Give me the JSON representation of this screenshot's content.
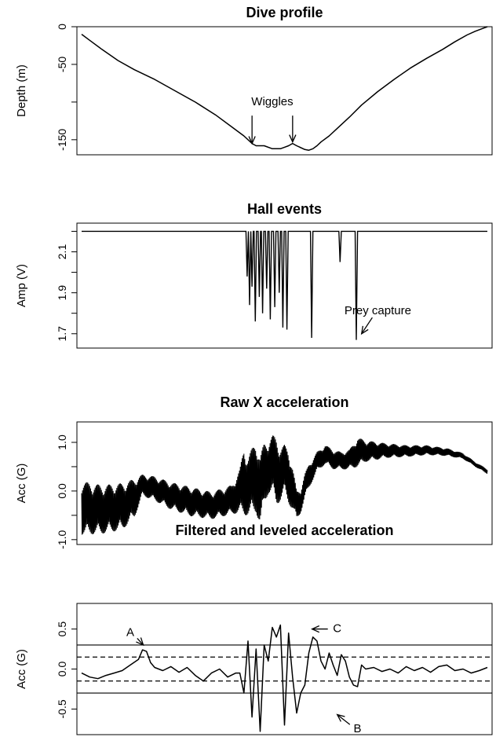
{
  "chart_data": [
    {
      "type": "line",
      "title": "Dive profile",
      "ylabel": "Depth (m)",
      "xlabel": "",
      "ylim": [
        -170,
        0
      ],
      "yticks": [
        {
          "v": 0,
          "label": "0"
        },
        {
          "v": -50,
          "label": "-50"
        },
        {
          "v": -100,
          "label": ""
        },
        {
          "v": -150,
          "label": "-150"
        }
      ],
      "x": [
        0,
        0.02,
        0.05,
        0.09,
        0.13,
        0.18,
        0.23,
        0.28,
        0.33,
        0.37,
        0.4,
        0.42,
        0.43,
        0.45,
        0.47,
        0.49,
        0.5,
        0.51,
        0.52,
        0.53,
        0.55,
        0.56,
        0.57,
        0.58,
        0.59,
        0.61,
        0.63,
        0.66,
        0.69,
        0.73,
        0.77,
        0.81,
        0.85,
        0.89,
        0.92,
        0.95,
        0.97,
        0.99,
        1.0
      ],
      "values": [
        -10,
        -18,
        -30,
        -45,
        -57,
        -70,
        -85,
        -100,
        -117,
        -133,
        -145,
        -155,
        -158,
        -158,
        -162,
        -162,
        -160,
        -158,
        -155,
        -158,
        -163,
        -164,
        -162,
        -158,
        -153,
        -145,
        -135,
        -120,
        -104,
        -86,
        -70,
        -55,
        -42,
        -30,
        -20,
        -11,
        -6,
        -2,
        0
      ],
      "annotations": [
        {
          "text": "Wiggles",
          "x": 0.47,
          "y": -100
        },
        {
          "text": "",
          "x": 0.42,
          "y": -155,
          "arrow_from": [
            0.42,
            -118
          ]
        },
        {
          "text": "",
          "x": 0.52,
          "y": -153,
          "arrow_from": [
            0.52,
            -118
          ]
        }
      ]
    },
    {
      "type": "line",
      "title": "Hall events",
      "ylabel": "Amp (V)",
      "xlabel": "",
      "ylim": [
        1.63,
        2.24
      ],
      "yticks": [
        {
          "v": 1.7,
          "label": "1.7"
        },
        {
          "v": 1.8,
          "label": ""
        },
        {
          "v": 1.9,
          "label": "1.9"
        },
        {
          "v": 2.0,
          "label": ""
        },
        {
          "v": 2.1,
          "label": "2.1"
        },
        {
          "v": 2.2,
          "label": ""
        }
      ],
      "baseline": 2.2,
      "dips": [
        {
          "x": 0.408,
          "min": 1.98
        },
        {
          "x": 0.414,
          "min": 1.84
        },
        {
          "x": 0.42,
          "min": 1.93
        },
        {
          "x": 0.428,
          "min": 1.76
        },
        {
          "x": 0.438,
          "min": 1.88
        },
        {
          "x": 0.446,
          "min": 1.8
        },
        {
          "x": 0.456,
          "min": 1.92
        },
        {
          "x": 0.465,
          "min": 1.77
        },
        {
          "x": 0.476,
          "min": 1.83
        },
        {
          "x": 0.487,
          "min": 1.9
        },
        {
          "x": 0.496,
          "min": 1.73
        },
        {
          "x": 0.506,
          "min": 1.72
        },
        {
          "x": 0.567,
          "min": 1.68
        },
        {
          "x": 0.637,
          "min": 2.05
        },
        {
          "x": 0.677,
          "min": 1.67
        }
      ],
      "annotations": [
        {
          "text": "Prey capture",
          "x": 0.73,
          "y": 1.81,
          "arrow_to": [
            0.69,
            1.7
          ]
        }
      ]
    },
    {
      "type": "line",
      "title": "Raw X acceleration",
      "ylabel": "Acc (G)",
      "xlabel": "",
      "ylim": [
        -1.1,
        1.42
      ],
      "yticks": [
        {
          "v": -1.0,
          "label": "-1.0"
        },
        {
          "v": -0.5,
          "label": ""
        },
        {
          "v": 0.0,
          "label": "0.0"
        },
        {
          "v": 0.5,
          "label": ""
        },
        {
          "v": 1.0,
          "label": "1.0"
        }
      ],
      "envelope_x": [
        0,
        0.05,
        0.1,
        0.13,
        0.15,
        0.18,
        0.22,
        0.27,
        0.32,
        0.37,
        0.39,
        0.4,
        0.41,
        0.43,
        0.44,
        0.45,
        0.46,
        0.47,
        0.48,
        0.49,
        0.5,
        0.51,
        0.52,
        0.53,
        0.54,
        0.55,
        0.56,
        0.58,
        0.6,
        0.62,
        0.64,
        0.66,
        0.67,
        0.68,
        0.7,
        0.75,
        0.8,
        0.85,
        0.9,
        0.94,
        0.97,
        1.0
      ],
      "envelope_mid": [
        -0.35,
        -0.38,
        -0.32,
        -0.15,
        0.12,
        0.05,
        -0.1,
        -0.22,
        -0.3,
        -0.18,
        0.0,
        0.2,
        0.1,
        0.3,
        0.0,
        0.35,
        0.5,
        0.55,
        0.4,
        0.35,
        0.45,
        0.3,
        0.05,
        -0.3,
        -0.2,
        0.1,
        0.3,
        0.6,
        0.75,
        0.65,
        0.62,
        0.65,
        0.72,
        0.8,
        0.82,
        0.83,
        0.82,
        0.84,
        0.8,
        0.72,
        0.55,
        0.4
      ],
      "envelope_amp": [
        0.55,
        0.5,
        0.48,
        0.4,
        0.22,
        0.25,
        0.28,
        0.3,
        0.28,
        0.3,
        0.45,
        0.7,
        0.6,
        0.75,
        0.7,
        0.65,
        0.55,
        0.6,
        0.7,
        0.55,
        0.5,
        0.55,
        0.45,
        0.3,
        0.25,
        0.25,
        0.25,
        0.2,
        0.2,
        0.2,
        0.18,
        0.2,
        0.25,
        0.3,
        0.22,
        0.15,
        0.12,
        0.1,
        0.08,
        0.06,
        0.05,
        0.05
      ]
    },
    {
      "type": "line",
      "title": "Filtered and leveled acceleration",
      "ylabel": "Acc (G)",
      "xlabel": "",
      "ylim": [
        -0.82,
        0.82
      ],
      "yticks": [
        {
          "v": -0.5,
          "label": "-0.5"
        },
        {
          "v": 0.0,
          "label": "0.0"
        },
        {
          "v": 0.5,
          "label": "0.5"
        }
      ],
      "hlines_solid": [
        0.3,
        -0.3
      ],
      "hlines_dashed": [
        0.15,
        -0.15
      ],
      "x": [
        0,
        0.02,
        0.04,
        0.06,
        0.08,
        0.1,
        0.12,
        0.14,
        0.15,
        0.16,
        0.17,
        0.18,
        0.2,
        0.22,
        0.24,
        0.26,
        0.28,
        0.3,
        0.32,
        0.34,
        0.36,
        0.38,
        0.39,
        0.4,
        0.41,
        0.42,
        0.43,
        0.44,
        0.45,
        0.46,
        0.47,
        0.48,
        0.49,
        0.5,
        0.51,
        0.52,
        0.53,
        0.54,
        0.55,
        0.56,
        0.57,
        0.58,
        0.59,
        0.6,
        0.61,
        0.62,
        0.63,
        0.64,
        0.65,
        0.66,
        0.67,
        0.68,
        0.69,
        0.7,
        0.72,
        0.74,
        0.76,
        0.78,
        0.8,
        0.82,
        0.84,
        0.86,
        0.88,
        0.9,
        0.92,
        0.94,
        0.96,
        0.98,
        1.0
      ],
      "values": [
        -0.05,
        -0.1,
        -0.12,
        -0.08,
        -0.05,
        -0.02,
        0.05,
        0.12,
        0.24,
        0.22,
        0.08,
        0.02,
        -0.02,
        0.03,
        -0.04,
        0.02,
        -0.08,
        -0.15,
        -0.05,
        0.0,
        -0.1,
        -0.05,
        -0.05,
        -0.3,
        0.35,
        -0.6,
        0.25,
        -0.78,
        0.3,
        0.1,
        0.52,
        0.4,
        0.55,
        -0.7,
        0.45,
        -0.1,
        -0.55,
        -0.3,
        -0.2,
        0.2,
        0.4,
        0.35,
        0.1,
        0.0,
        0.2,
        0.05,
        -0.08,
        0.18,
        0.1,
        -0.1,
        -0.2,
        -0.22,
        0.05,
        0.0,
        0.02,
        -0.03,
        0.0,
        -0.05,
        0.03,
        -0.02,
        0.02,
        -0.04,
        0.03,
        0.05,
        -0.02,
        0.0,
        -0.05,
        -0.02,
        0.02
      ],
      "annotations": [
        {
          "text": "A",
          "x": 0.12,
          "y": 0.45,
          "arrow_to": [
            0.152,
            0.3
          ]
        },
        {
          "text": "C",
          "x": 0.63,
          "y": 0.5,
          "arrow_to": [
            0.568,
            0.5
          ]
        },
        {
          "text": "B",
          "x": 0.68,
          "y": -0.75,
          "arrow_to": [
            0.63,
            -0.57
          ]
        }
      ]
    }
  ]
}
